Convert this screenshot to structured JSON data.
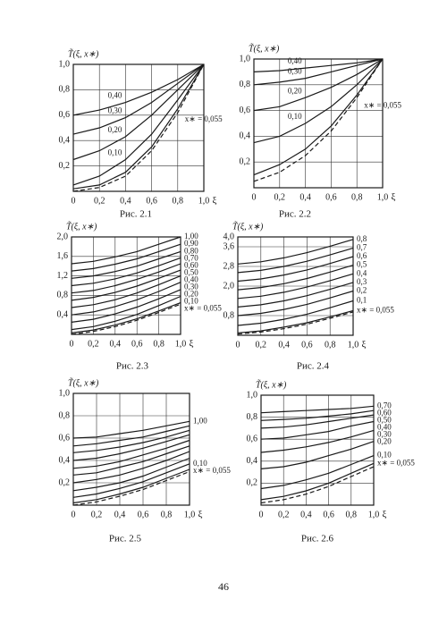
{
  "page_number": "46",
  "chart_data": [
    {
      "type": "line",
      "caption": "Рис. 2.1",
      "ylabel": "T̃(ξ, x∗)",
      "xlabel": "ξ",
      "color": "#1a1a1a",
      "grid": true,
      "x": [
        0,
        0.2,
        0.4,
        0.6,
        0.8,
        1.0
      ],
      "xlim": [
        0,
        1.0
      ],
      "ylim": [
        0,
        1.0
      ],
      "xticks": [
        {
          "value": 0,
          "label": "0"
        },
        {
          "value": 0.2,
          "label": "0,2"
        },
        {
          "value": 0.4,
          "label": "0,4"
        },
        {
          "value": 0.6,
          "label": "0,6"
        },
        {
          "value": 0.8,
          "label": "0,8"
        },
        {
          "value": 1.0,
          "label": "1,0"
        }
      ],
      "yticks": [
        {
          "value": 0.2,
          "label": "0,2"
        },
        {
          "value": 0.4,
          "label": "0,4"
        },
        {
          "value": 0.6,
          "label": "0,6"
        },
        {
          "value": 0.8,
          "label": "0,8"
        },
        {
          "value": 1.0,
          "label": "1,0"
        }
      ],
      "series": [
        {
          "name": "0,40",
          "values": [
            0.6,
            0.64,
            0.7,
            0.78,
            0.88,
            1.0
          ]
        },
        {
          "name": "0,30",
          "values": [
            0.45,
            0.5,
            0.58,
            0.7,
            0.85,
            1.0
          ]
        },
        {
          "name": "0,20",
          "values": [
            0.25,
            0.32,
            0.43,
            0.6,
            0.8,
            1.0
          ]
        },
        {
          "name": "0,10",
          "values": [
            0.05,
            0.12,
            0.25,
            0.45,
            0.72,
            1.0
          ]
        },
        {
          "name": "x∗ = 0,055",
          "values": [
            0.02,
            0.05,
            0.15,
            0.35,
            0.65,
            1.0
          ]
        },
        {
          "dash": true,
          "values": [
            0,
            0.03,
            0.12,
            0.32,
            0.62,
            1.0
          ]
        }
      ]
    },
    {
      "type": "line",
      "caption": "Рис. 2.2",
      "ylabel": "T̃(ξ, x∗)",
      "xlabel": "ξ",
      "color": "#1a1a1a",
      "grid": true,
      "x": [
        0,
        0.2,
        0.4,
        0.6,
        0.8,
        1.0
      ],
      "xlim": [
        0,
        1.0
      ],
      "ylim": [
        0,
        1.0
      ],
      "xticks": [
        {
          "value": 0,
          "label": "0"
        },
        {
          "value": 0.2,
          "label": "0,2"
        },
        {
          "value": 0.4,
          "label": "0,4"
        },
        {
          "value": 0.6,
          "label": "0,6"
        },
        {
          "value": 0.8,
          "label": "0,8"
        },
        {
          "value": 1.0,
          "label": "1,0"
        }
      ],
      "yticks": [
        {
          "value": 0.2,
          "label": "0,2"
        },
        {
          "value": 0.4,
          "label": "0,4"
        },
        {
          "value": 0.6,
          "label": "0,6"
        },
        {
          "value": 0.8,
          "label": "0,8"
        },
        {
          "value": 1.0,
          "label": "1,0"
        }
      ],
      "series": [
        {
          "name": "0,40",
          "values": [
            0.9,
            0.91,
            0.93,
            0.95,
            0.97,
            1.0
          ]
        },
        {
          "name": "0,30",
          "values": [
            0.8,
            0.82,
            0.85,
            0.9,
            0.95,
            1.0
          ]
        },
        {
          "name": "0,20",
          "values": [
            0.6,
            0.63,
            0.7,
            0.78,
            0.88,
            1.0
          ]
        },
        {
          "name": "0,10",
          "values": [
            0.35,
            0.4,
            0.5,
            0.63,
            0.8,
            1.0
          ]
        },
        {
          "name": "x∗ = 0,055",
          "values": [
            0.1,
            0.18,
            0.3,
            0.48,
            0.72,
            1.0
          ]
        },
        {
          "dash": true,
          "values": [
            0.05,
            0.12,
            0.25,
            0.44,
            0.7,
            1.0
          ]
        }
      ]
    },
    {
      "type": "line",
      "caption": "Рис. 2.3",
      "ylabel": "T̃(ξ, x∗)",
      "xlabel": "ξ",
      "color": "#1a1a1a",
      "grid": true,
      "x": [
        0,
        0.2,
        0.4,
        0.6,
        0.8,
        1.0
      ],
      "xlim": [
        0,
        1.0
      ],
      "ylim": [
        0,
        2.0
      ],
      "xticks": [
        {
          "value": 0,
          "label": "0"
        },
        {
          "value": 0.2,
          "label": "0,2"
        },
        {
          "value": 0.4,
          "label": "0,4"
        },
        {
          "value": 0.6,
          "label": "0,6"
        },
        {
          "value": 0.8,
          "label": "0,8"
        },
        {
          "value": 1.0,
          "label": "1,0"
        }
      ],
      "yticks": [
        {
          "value": 0.4,
          "label": "0,4"
        },
        {
          "value": 0.8,
          "label": "0,8"
        },
        {
          "value": 1.2,
          "label": "1,2"
        },
        {
          "value": 1.6,
          "label": "1,6"
        },
        {
          "value": 2.0,
          "label": "2,0"
        }
      ],
      "series": [
        {
          "name": "1,00",
          "values": [
            1.45,
            1.5,
            1.59,
            1.7,
            1.85,
            2.0
          ]
        },
        {
          "name": "0,90",
          "values": [
            1.3,
            1.35,
            1.44,
            1.55,
            1.7,
            1.85
          ]
        },
        {
          "name": "0,80",
          "values": [
            1.15,
            1.2,
            1.29,
            1.4,
            1.55,
            1.7
          ]
        },
        {
          "name": "0,70",
          "values": [
            1.0,
            1.05,
            1.14,
            1.26,
            1.41,
            1.57
          ]
        },
        {
          "name": "0,60",
          "values": [
            0.85,
            0.9,
            1.0,
            1.13,
            1.28,
            1.45
          ]
        },
        {
          "name": "0,50",
          "values": [
            0.7,
            0.76,
            0.86,
            0.99,
            1.15,
            1.32
          ]
        },
        {
          "name": "0,40",
          "values": [
            0.55,
            0.61,
            0.71,
            0.85,
            1.02,
            1.2
          ]
        },
        {
          "name": "0,30",
          "values": [
            0.4,
            0.46,
            0.57,
            0.71,
            0.88,
            1.07
          ]
        },
        {
          "name": "0,20",
          "values": [
            0.25,
            0.31,
            0.42,
            0.56,
            0.73,
            0.92
          ]
        },
        {
          "name": "0,10",
          "values": [
            0.1,
            0.16,
            0.27,
            0.41,
            0.59,
            0.78
          ]
        },
        {
          "name": "x∗ = 0,055",
          "values": [
            0.03,
            0.09,
            0.19,
            0.32,
            0.48,
            0.65
          ]
        },
        {
          "dash": true,
          "values": [
            0,
            0.06,
            0.16,
            0.29,
            0.45,
            0.62
          ]
        }
      ]
    },
    {
      "type": "line",
      "caption": "Рис. 2.4",
      "ylabel": "T̃(ξ, x∗)",
      "xlabel": "ξ",
      "color": "#1a1a1a",
      "grid": true,
      "x": [
        0,
        0.2,
        0.4,
        0.6,
        0.8,
        1.0
      ],
      "xlim": [
        0,
        1.0
      ],
      "ylim": [
        0,
        4.0
      ],
      "xticks": [
        {
          "value": 0,
          "label": "0"
        },
        {
          "value": 0.2,
          "label": "0,2"
        },
        {
          "value": 0.4,
          "label": "0,4"
        },
        {
          "value": 0.6,
          "label": "0,6"
        },
        {
          "value": 0.8,
          "label": "0,8"
        },
        {
          "value": 1.0,
          "label": "1,0"
        }
      ],
      "yticks": [
        {
          "value": 0.8,
          "label": "0,8"
        },
        {
          "value": 2.0,
          "label": "2,0"
        },
        {
          "value": 2.8,
          "label": "2,8"
        },
        {
          "value": 3.6,
          "label": "3,6"
        },
        {
          "value": 4.0,
          "label": "4,0"
        }
      ],
      "series": [
        {
          "name": "0,8",
          "values": [
            2.9,
            2.99,
            3.15,
            3.36,
            3.62,
            3.9
          ]
        },
        {
          "name": "0,7",
          "values": [
            2.55,
            2.64,
            2.8,
            3.01,
            3.27,
            3.55
          ]
        },
        {
          "name": "0,6",
          "values": [
            2.2,
            2.29,
            2.45,
            2.66,
            2.92,
            3.2
          ]
        },
        {
          "name": "0,5",
          "values": [
            1.85,
            1.94,
            2.1,
            2.31,
            2.57,
            2.85
          ]
        },
        {
          "name": "0,4",
          "values": [
            1.5,
            1.59,
            1.75,
            1.96,
            2.22,
            2.5
          ]
        },
        {
          "name": "0,3",
          "values": [
            1.15,
            1.24,
            1.4,
            1.61,
            1.87,
            2.15
          ]
        },
        {
          "name": "0,2",
          "values": [
            0.8,
            0.89,
            1.05,
            1.26,
            1.52,
            1.8
          ]
        },
        {
          "name": "0,1",
          "values": [
            0.4,
            0.49,
            0.65,
            0.86,
            1.12,
            1.4
          ]
        },
        {
          "name": "x∗ = 0,055",
          "values": [
            0.1,
            0.18,
            0.33,
            0.51,
            0.75,
            1.0
          ]
        },
        {
          "dash": true,
          "values": [
            0.05,
            0.13,
            0.27,
            0.45,
            0.69,
            0.95
          ]
        }
      ]
    },
    {
      "type": "line",
      "caption": "Рис. 2.5",
      "ylabel": "T̃(ξ, x∗)",
      "xlabel": "ξ",
      "color": "#1a1a1a",
      "grid": true,
      "x": [
        0,
        0.2,
        0.4,
        0.6,
        0.8,
        1.0
      ],
      "xlim": [
        0,
        1.0
      ],
      "ylim": [
        0,
        1.0
      ],
      "xticks": [
        {
          "value": 0,
          "label": "0"
        },
        {
          "value": 0.2,
          "label": "0,2"
        },
        {
          "value": 0.4,
          "label": "0,4"
        },
        {
          "value": 0.6,
          "label": "0,6"
        },
        {
          "value": 0.8,
          "label": "0,8"
        },
        {
          "value": 1.0,
          "label": "1,0"
        }
      ],
      "yticks": [
        {
          "value": 0.2,
          "label": "0,2"
        },
        {
          "value": 0.4,
          "label": "0,4"
        },
        {
          "value": 0.6,
          "label": "0,6"
        },
        {
          "value": 0.8,
          "label": "0,8"
        },
        {
          "value": 1.0,
          "label": "1,0"
        }
      ],
      "series": [
        {
          "name": "1,00",
          "values": [
            0.6,
            0.61,
            0.64,
            0.67,
            0.71,
            0.75
          ]
        },
        {
          "values": [
            0.53,
            0.55,
            0.58,
            0.61,
            0.66,
            0.71
          ]
        },
        {
          "values": [
            0.47,
            0.49,
            0.52,
            0.56,
            0.61,
            0.67
          ]
        },
        {
          "values": [
            0.4,
            0.42,
            0.46,
            0.51,
            0.57,
            0.63
          ]
        },
        {
          "values": [
            0.33,
            0.35,
            0.39,
            0.45,
            0.51,
            0.58
          ]
        },
        {
          "values": [
            0.27,
            0.29,
            0.34,
            0.39,
            0.46,
            0.53
          ]
        },
        {
          "values": [
            0.2,
            0.23,
            0.27,
            0.33,
            0.4,
            0.48
          ]
        },
        {
          "values": [
            0.13,
            0.16,
            0.2,
            0.26,
            0.34,
            0.42
          ]
        },
        {
          "name": "0,10",
          "values": [
            0.07,
            0.1,
            0.15,
            0.21,
            0.29,
            0.37
          ]
        },
        {
          "name": "x∗ = 0,055",
          "values": [
            0.02,
            0.05,
            0.1,
            0.16,
            0.24,
            0.32
          ]
        },
        {
          "dash": true,
          "values": [
            0,
            0.03,
            0.08,
            0.14,
            0.22,
            0.3
          ]
        }
      ]
    },
    {
      "type": "line",
      "caption": "Рис. 2.6",
      "ylabel": "T̃(ξ, x∗)",
      "xlabel": "ξ",
      "color": "#1a1a1a",
      "grid": true,
      "x": [
        0,
        0.2,
        0.4,
        0.6,
        0.8,
        1.0
      ],
      "xlim": [
        0,
        1.0
      ],
      "ylim": [
        0,
        1.0
      ],
      "xticks": [
        {
          "value": 0,
          "label": "0"
        },
        {
          "value": 0.2,
          "label": "0,2"
        },
        {
          "value": 0.4,
          "label": "0,4"
        },
        {
          "value": 0.6,
          "label": "0,6"
        },
        {
          "value": 0.8,
          "label": "0,8"
        },
        {
          "value": 1.0,
          "label": "1,0"
        }
      ],
      "yticks": [
        {
          "value": 0.2,
          "label": "0,2"
        },
        {
          "value": 0.4,
          "label": "0,4"
        },
        {
          "value": 0.6,
          "label": "0,6"
        },
        {
          "value": 0.8,
          "label": "0,8"
        },
        {
          "value": 1.0,
          "label": "1,0"
        }
      ],
      "series": [
        {
          "name": "0,70",
          "values": [
            0.84,
            0.85,
            0.86,
            0.87,
            0.88,
            0.9
          ]
        },
        {
          "name": "0,60",
          "values": [
            0.77,
            0.78,
            0.79,
            0.81,
            0.83,
            0.86
          ]
        },
        {
          "name": "0,50",
          "values": [
            0.7,
            0.71,
            0.73,
            0.76,
            0.79,
            0.82
          ]
        },
        {
          "name": "0,40",
          "values": [
            0.6,
            0.61,
            0.64,
            0.67,
            0.72,
            0.76
          ]
        },
        {
          "name": "0,30",
          "values": [
            0.48,
            0.5,
            0.53,
            0.57,
            0.62,
            0.68
          ]
        },
        {
          "name": "0,20",
          "values": [
            0.33,
            0.35,
            0.39,
            0.45,
            0.51,
            0.58
          ]
        },
        {
          "name": "0,10",
          "values": [
            0.15,
            0.18,
            0.23,
            0.29,
            0.37,
            0.45
          ]
        },
        {
          "name": "x∗ = 0,055",
          "values": [
            0.05,
            0.08,
            0.13,
            0.2,
            0.29,
            0.38
          ]
        },
        {
          "dash": true,
          "values": [
            0.02,
            0.05,
            0.1,
            0.17,
            0.26,
            0.35
          ]
        }
      ]
    }
  ]
}
